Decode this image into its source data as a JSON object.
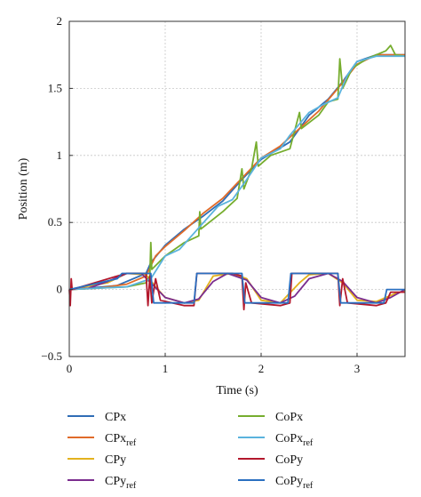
{
  "chart_data": {
    "type": "line",
    "xlabel": "Time (s)",
    "ylabel": "Position (m)",
    "xlim": [
      0,
      3.5
    ],
    "ylim": [
      -0.5,
      2
    ],
    "xticks": [
      "0",
      "1",
      "2",
      "3"
    ],
    "yticks": [
      "−0.5",
      "0",
      "0.5",
      "1",
      "1.5",
      "2"
    ],
    "grid": true,
    "legend_position": "bottom",
    "series": [
      {
        "name": "CPx",
        "name_main": "CPx",
        "name_sub": "",
        "color": "#2f6db5",
        "points": [
          [
            0,
            0
          ],
          [
            0.2,
            0.01
          ],
          [
            0.5,
            0.03
          ],
          [
            0.8,
            0.12
          ],
          [
            0.85,
            0.2
          ],
          [
            1.0,
            0.33
          ],
          [
            1.2,
            0.45
          ],
          [
            1.4,
            0.55
          ],
          [
            1.6,
            0.66
          ],
          [
            1.8,
            0.82
          ],
          [
            2.0,
            0.97
          ],
          [
            2.3,
            1.1
          ],
          [
            2.5,
            1.3
          ],
          [
            2.7,
            1.42
          ],
          [
            2.85,
            1.55
          ],
          [
            3.0,
            1.7
          ],
          [
            3.2,
            1.75
          ],
          [
            3.5,
            1.75
          ]
        ]
      },
      {
        "name": "CPx_ref",
        "name_main": "CPx",
        "name_sub": "ref",
        "color": "#e06b2a",
        "points": [
          [
            0,
            0
          ],
          [
            0.3,
            0.01
          ],
          [
            0.6,
            0.04
          ],
          [
            0.8,
            0.1
          ],
          [
            0.9,
            0.25
          ],
          [
            1.0,
            0.32
          ],
          [
            1.2,
            0.44
          ],
          [
            1.4,
            0.57
          ],
          [
            1.6,
            0.68
          ],
          [
            1.8,
            0.83
          ],
          [
            2.0,
            0.98
          ],
          [
            2.2,
            1.07
          ],
          [
            2.4,
            1.2
          ],
          [
            2.6,
            1.33
          ],
          [
            2.8,
            1.5
          ],
          [
            3.0,
            1.68
          ],
          [
            3.2,
            1.75
          ],
          [
            3.5,
            1.75
          ]
        ]
      },
      {
        "name": "CPy",
        "name_main": "CPy",
        "name_sub": "",
        "color": "#e3b21e",
        "points": [
          [
            0,
            0
          ],
          [
            0.4,
            0.05
          ],
          [
            0.6,
            0.12
          ],
          [
            0.8,
            0.11
          ],
          [
            0.9,
            0.02
          ],
          [
            1.0,
            -0.06
          ],
          [
            1.2,
            -0.1
          ],
          [
            1.35,
            -0.08
          ],
          [
            1.5,
            0.1
          ],
          [
            1.7,
            0.12
          ],
          [
            1.85,
            0.08
          ],
          [
            2.0,
            -0.08
          ],
          [
            2.2,
            -0.1
          ],
          [
            2.4,
            0.05
          ],
          [
            2.5,
            0.11
          ],
          [
            2.7,
            0.12
          ],
          [
            2.85,
            0.05
          ],
          [
            3.0,
            -0.08
          ],
          [
            3.2,
            -0.09
          ],
          [
            3.4,
            -0.03
          ],
          [
            3.5,
            -0.01
          ]
        ]
      },
      {
        "name": "CPy_ref",
        "name_main": "CPy",
        "name_sub": "ref",
        "color": "#7b2d8e",
        "points": [
          [
            0,
            0
          ],
          [
            0.2,
            0.01
          ],
          [
            0.4,
            0.06
          ],
          [
            0.6,
            0.12
          ],
          [
            0.75,
            0.12
          ],
          [
            0.85,
            0.05
          ],
          [
            1.0,
            -0.06
          ],
          [
            1.2,
            -0.1
          ],
          [
            1.35,
            -0.07
          ],
          [
            1.5,
            0.06
          ],
          [
            1.65,
            0.12
          ],
          [
            1.85,
            0.07
          ],
          [
            2.0,
            -0.06
          ],
          [
            2.2,
            -0.1
          ],
          [
            2.35,
            -0.05
          ],
          [
            2.5,
            0.08
          ],
          [
            2.7,
            0.12
          ],
          [
            2.85,
            0.06
          ],
          [
            3.0,
            -0.06
          ],
          [
            3.2,
            -0.1
          ],
          [
            3.35,
            -0.06
          ],
          [
            3.5,
            0
          ]
        ]
      },
      {
        "name": "CoPx",
        "name_main": "CoPx",
        "name_sub": "",
        "color": "#76ad2e",
        "points": [
          [
            0,
            0
          ],
          [
            0.6,
            0.02
          ],
          [
            0.8,
            0.05
          ],
          [
            0.84,
            0.1
          ],
          [
            0.85,
            0.35
          ],
          [
            0.86,
            0.15
          ],
          [
            1.0,
            0.25
          ],
          [
            1.2,
            0.35
          ],
          [
            1.35,
            0.4
          ],
          [
            1.36,
            0.58
          ],
          [
            1.37,
            0.45
          ],
          [
            1.6,
            0.58
          ],
          [
            1.75,
            0.68
          ],
          [
            1.8,
            0.9
          ],
          [
            1.82,
            0.75
          ],
          [
            1.9,
            0.9
          ],
          [
            1.95,
            1.1
          ],
          [
            1.97,
            0.92
          ],
          [
            2.1,
            1.0
          ],
          [
            2.3,
            1.05
          ],
          [
            2.4,
            1.32
          ],
          [
            2.42,
            1.2
          ],
          [
            2.6,
            1.3
          ],
          [
            2.7,
            1.4
          ],
          [
            2.8,
            1.42
          ],
          [
            2.82,
            1.72
          ],
          [
            2.85,
            1.5
          ],
          [
            2.95,
            1.65
          ],
          [
            3.1,
            1.72
          ],
          [
            3.3,
            1.78
          ],
          [
            3.35,
            1.82
          ],
          [
            3.4,
            1.75
          ],
          [
            3.5,
            1.74
          ]
        ]
      },
      {
        "name": "CoPx_ref",
        "name_main": "CoPx",
        "name_sub": "ref",
        "color": "#5ab3dd",
        "points": [
          [
            0,
            0
          ],
          [
            0.6,
            0.02
          ],
          [
            0.85,
            0.08
          ],
          [
            1.0,
            0.25
          ],
          [
            1.15,
            0.3
          ],
          [
            1.3,
            0.42
          ],
          [
            1.4,
            0.5
          ],
          [
            1.55,
            0.62
          ],
          [
            1.7,
            0.67
          ],
          [
            1.85,
            0.82
          ],
          [
            2.0,
            0.98
          ],
          [
            2.2,
            1.05
          ],
          [
            2.3,
            1.15
          ],
          [
            2.5,
            1.32
          ],
          [
            2.65,
            1.38
          ],
          [
            2.8,
            1.43
          ],
          [
            2.9,
            1.6
          ],
          [
            3.0,
            1.7
          ],
          [
            3.2,
            1.74
          ],
          [
            3.5,
            1.74
          ]
        ]
      },
      {
        "name": "CoPy",
        "name_main": "CoPy",
        "name_sub": "",
        "color": "#b3182c",
        "points": [
          [
            0,
            0
          ],
          [
            0.01,
            -0.12
          ],
          [
            0.02,
            0.08
          ],
          [
            0.03,
            0
          ],
          [
            0.5,
            0.1
          ],
          [
            0.6,
            0.12
          ],
          [
            0.8,
            0.12
          ],
          [
            0.82,
            -0.12
          ],
          [
            0.84,
            0.1
          ],
          [
            0.86,
            -0.1
          ],
          [
            0.9,
            0.08
          ],
          [
            0.95,
            -0.08
          ],
          [
            1.2,
            -0.12
          ],
          [
            1.3,
            -0.12
          ],
          [
            1.33,
            0.12
          ],
          [
            1.4,
            0.12
          ],
          [
            1.7,
            0.12
          ],
          [
            1.8,
            0.1
          ],
          [
            1.82,
            -0.15
          ],
          [
            1.84,
            0.05
          ],
          [
            1.9,
            -0.1
          ],
          [
            2.2,
            -0.12
          ],
          [
            2.3,
            -0.1
          ],
          [
            2.32,
            0.12
          ],
          [
            2.5,
            0.12
          ],
          [
            2.7,
            0.12
          ],
          [
            2.8,
            0.12
          ],
          [
            2.82,
            -0.12
          ],
          [
            2.85,
            0.08
          ],
          [
            2.9,
            -0.1
          ],
          [
            3.2,
            -0.12
          ],
          [
            3.3,
            -0.1
          ],
          [
            3.35,
            -0.02
          ],
          [
            3.5,
            -0.02
          ]
        ]
      },
      {
        "name": "CoPy_ref",
        "name_main": "CoPy",
        "name_sub": "ref",
        "color": "#2a6fc0",
        "points": [
          [
            0,
            0
          ],
          [
            0.5,
            0.08
          ],
          [
            0.55,
            0.12
          ],
          [
            0.85,
            0.12
          ],
          [
            0.88,
            -0.1
          ],
          [
            1.3,
            -0.1
          ],
          [
            1.33,
            0.12
          ],
          [
            1.8,
            0.12
          ],
          [
            1.83,
            -0.1
          ],
          [
            2.28,
            -0.1
          ],
          [
            2.31,
            0.12
          ],
          [
            2.8,
            0.12
          ],
          [
            2.83,
            -0.1
          ],
          [
            3.28,
            -0.1
          ],
          [
            3.31,
            0
          ],
          [
            3.5,
            0
          ]
        ]
      }
    ]
  }
}
